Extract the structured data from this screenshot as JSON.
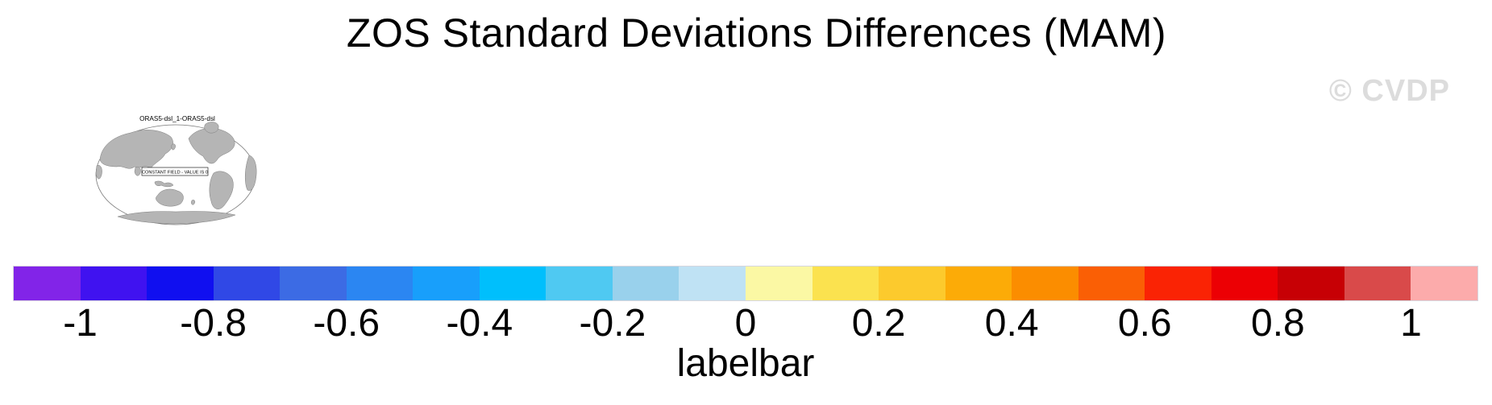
{
  "title": "ZOS Standard Deviations Differences (MAM)",
  "watermark": "© CVDP",
  "mini_map": {
    "label": "ORAS5-dsl_1-ORAS5-dsl",
    "annotation": "CONSTANT FIELD - VALUE IS 0",
    "land_color": "#b5b5b5",
    "outline_color": "#7d7d7d"
  },
  "labelbar": {
    "caption": "labelbar",
    "ticks": [
      "-1",
      "-0.8",
      "-0.6",
      "-0.4",
      "-0.2",
      "0",
      "0.2",
      "0.4",
      "0.6",
      "0.8",
      "1"
    ],
    "colors": [
      "#8224e8",
      "#4012f0",
      "#100ff0",
      "#3048e6",
      "#3c6be4",
      "#2b86f2",
      "#189ffb",
      "#00bffc",
      "#4fc9f2",
      "#99d1ec",
      "#bfe2f4",
      "#fbf8a4",
      "#fbe24f",
      "#fcca2d",
      "#fcab07",
      "#fb8d00",
      "#fa5f05",
      "#fa2304",
      "#ec0004",
      "#c70005",
      "#d94a4a",
      "#fcabab"
    ]
  },
  "chart_data": {
    "type": "heatmap",
    "title": "ZOS Standard Deviations Differences (MAM)",
    "season": "MAM",
    "variable": "ZOS standard deviation difference",
    "panels": [
      {
        "label": "ORAS5-dsl_1-ORAS5-dsl",
        "annotation": "CONSTANT FIELD - VALUE IS 0",
        "constant_value": 0,
        "projection": "global-elliptical, Pacific-centered"
      }
    ],
    "colorbar": {
      "caption": "labelbar",
      "orientation": "horizontal",
      "tick_values": [
        -1,
        -0.8,
        -0.6,
        -0.4,
        -0.2,
        0,
        0.2,
        0.4,
        0.6,
        0.8,
        1
      ],
      "level_min": -1.0,
      "level_max": 1.0,
      "level_step": 0.1,
      "n_segments": 22,
      "segment_colors": [
        "#8224e8",
        "#4012f0",
        "#100ff0",
        "#3048e6",
        "#3c6be4",
        "#2b86f2",
        "#189ffb",
        "#00bffc",
        "#4fc9f2",
        "#99d1ec",
        "#bfe2f4",
        "#fbf8a4",
        "#fbe24f",
        "#fcca2d",
        "#fcab07",
        "#fb8d00",
        "#fa5f05",
        "#fa2304",
        "#ec0004",
        "#c70005",
        "#d94a4a",
        "#fcabab"
      ]
    },
    "watermark": "© CVDP"
  }
}
